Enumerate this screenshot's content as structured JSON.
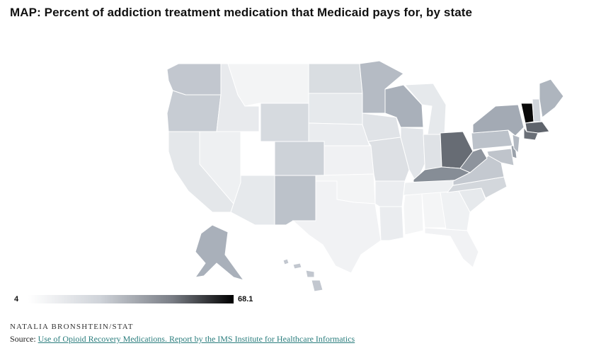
{
  "title": "MAP: Percent of addiction treatment medication that Medicaid pays for, by state",
  "legend": {
    "min": "4",
    "max": "68.1"
  },
  "credit": "NATALIA BRONSHTEIN/STAT",
  "source": {
    "prefix": "Source:",
    "link_text": "Use of Opioid Recovery Medications. Report by the IMS Institute for Healthcare Informatics"
  },
  "colors": {
    "lightest": "#f4f5f6",
    "light": "#e3e6ea",
    "mid_light": "#d2d7dd",
    "mid": "#bcc2ca",
    "mid_dark": "#a6adb7",
    "dark": "#868d96",
    "darker": "#676c74",
    "darkest": "#0a0a0a"
  },
  "icons": {
    "map": "choropleth-map"
  }
}
